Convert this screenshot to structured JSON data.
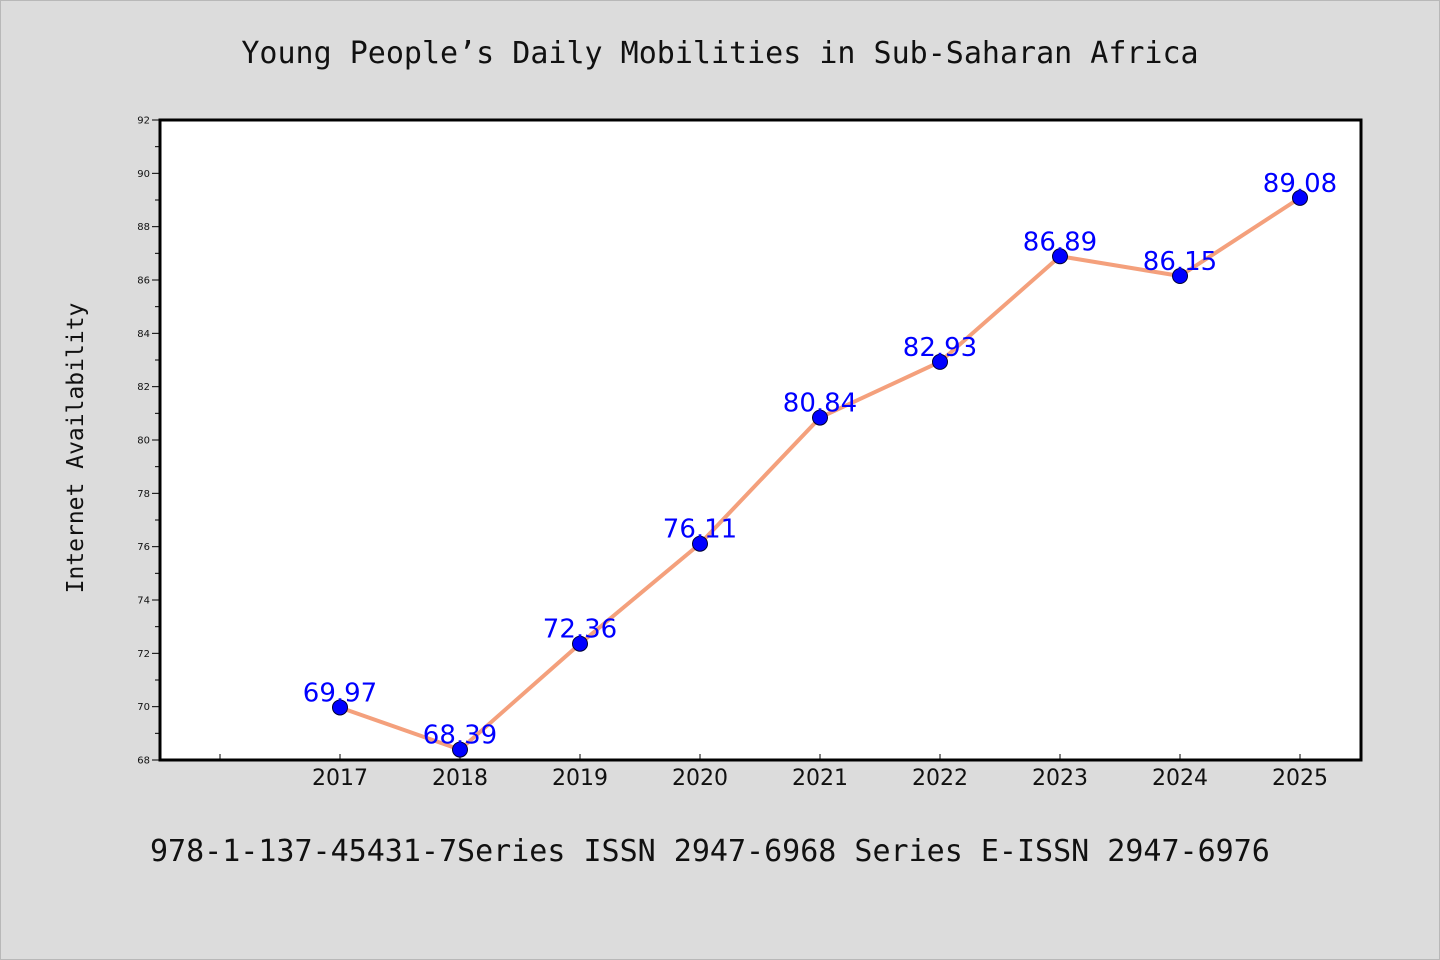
{
  "chart_data": {
    "type": "line",
    "title": "Young People’s Daily Mobilities in Sub-Saharan Africa",
    "xlabel": "",
    "ylabel": "Internet Availability",
    "categories": [
      "2017",
      "2018",
      "2019",
      "2020",
      "2021",
      "2022",
      "2023",
      "2024",
      "2025"
    ],
    "series": [
      {
        "values": [
          69.97,
          68.39,
          72.36,
          76.11,
          80.84,
          82.93,
          86.89,
          86.15,
          89.08
        ],
        "data_labels": [
          "69.97",
          "68.39",
          "72.36",
          "76.11",
          "80.84",
          "82.93",
          "86.89",
          "86.15",
          "89.08"
        ]
      }
    ],
    "ylim": [
      68,
      92
    ],
    "y_ticks": [
      "68",
      "70",
      "72",
      "74",
      "76",
      "78",
      "80",
      "82",
      "84",
      "86",
      "88",
      "90",
      "92"
    ],
    "grid": false,
    "legend": "none",
    "colors": {
      "line": "#f4a07c",
      "marker": "#0000ff",
      "data_label": "#0000ff",
      "background": "#dcdcdc",
      "plot_background": "#ffffff"
    }
  },
  "footer": {
    "text": "978-1-137-45431-7Series ISSN 2947-6968 Series E-ISSN 2947-6976"
  }
}
